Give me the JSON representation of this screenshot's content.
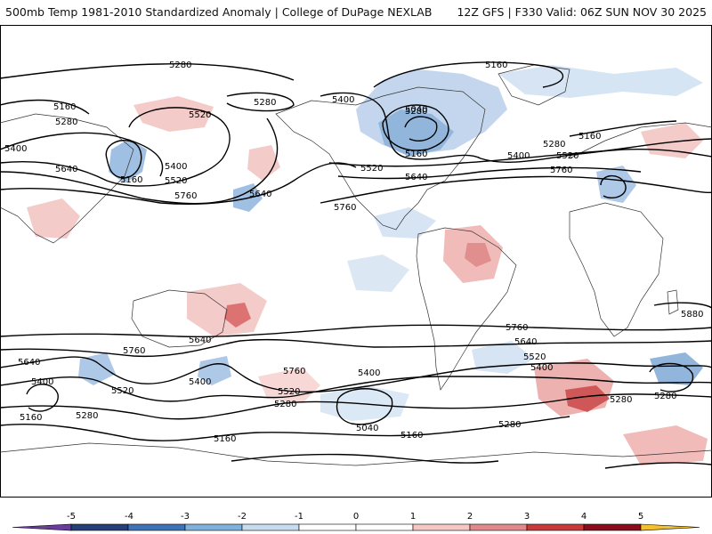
{
  "header": {
    "title": "500mb Temp 1981-2010 Standardized Anomaly | College of DuPage NEXLAB",
    "run": "12Z GFS | F330 Valid: 06Z SUN NOV 30 2025"
  },
  "colorbar": {
    "ticks": [
      "-5",
      "-4",
      "-3",
      "-2",
      "-1",
      "0",
      "1",
      "2",
      "3",
      "4",
      "5"
    ],
    "colors": [
      "#6a3d9a",
      "#253f78",
      "#3f73b8",
      "#7fb1dd",
      "#c8dcf0",
      "#ffffff",
      "#ffffff",
      "#f4c6c4",
      "#e28a8a",
      "#c83a3a",
      "#8b0d1a",
      "#f2c12e"
    ]
  },
  "contours": {
    "labels": [
      {
        "text": "5280"
      },
      {
        "text": "5160"
      },
      {
        "text": "5280"
      },
      {
        "text": "5160"
      },
      {
        "text": "5280"
      },
      {
        "text": "5400"
      },
      {
        "text": "5640"
      },
      {
        "text": "5160"
      },
      {
        "text": "5520"
      },
      {
        "text": "5400"
      },
      {
        "text": "5520"
      },
      {
        "text": "5760"
      },
      {
        "text": "5640"
      },
      {
        "text": "5280"
      },
      {
        "text": "5400"
      },
      {
        "text": "5040"
      },
      {
        "text": "5160"
      },
      {
        "text": "5520"
      },
      {
        "text": "5640"
      },
      {
        "text": "5760"
      },
      {
        "text": "5280"
      },
      {
        "text": "5160"
      },
      {
        "text": "5400"
      },
      {
        "text": "5520"
      },
      {
        "text": "5760"
      },
      {
        "text": "5880"
      },
      {
        "text": "5760"
      },
      {
        "text": "5640"
      },
      {
        "text": "5760"
      },
      {
        "text": "5640"
      },
      {
        "text": "5400"
      },
      {
        "text": "5520"
      },
      {
        "text": "5400"
      },
      {
        "text": "5760"
      },
      {
        "text": "5520"
      },
      {
        "text": "5280"
      },
      {
        "text": "5400"
      },
      {
        "text": "5160"
      },
      {
        "text": "5280"
      },
      {
        "text": "5040"
      },
      {
        "text": "5160"
      },
      {
        "text": "5160"
      },
      {
        "text": "5280"
      },
      {
        "text": "5640"
      },
      {
        "text": "5520"
      },
      {
        "text": "5400"
      },
      {
        "text": "5280"
      },
      {
        "text": "5280"
      }
    ]
  }
}
